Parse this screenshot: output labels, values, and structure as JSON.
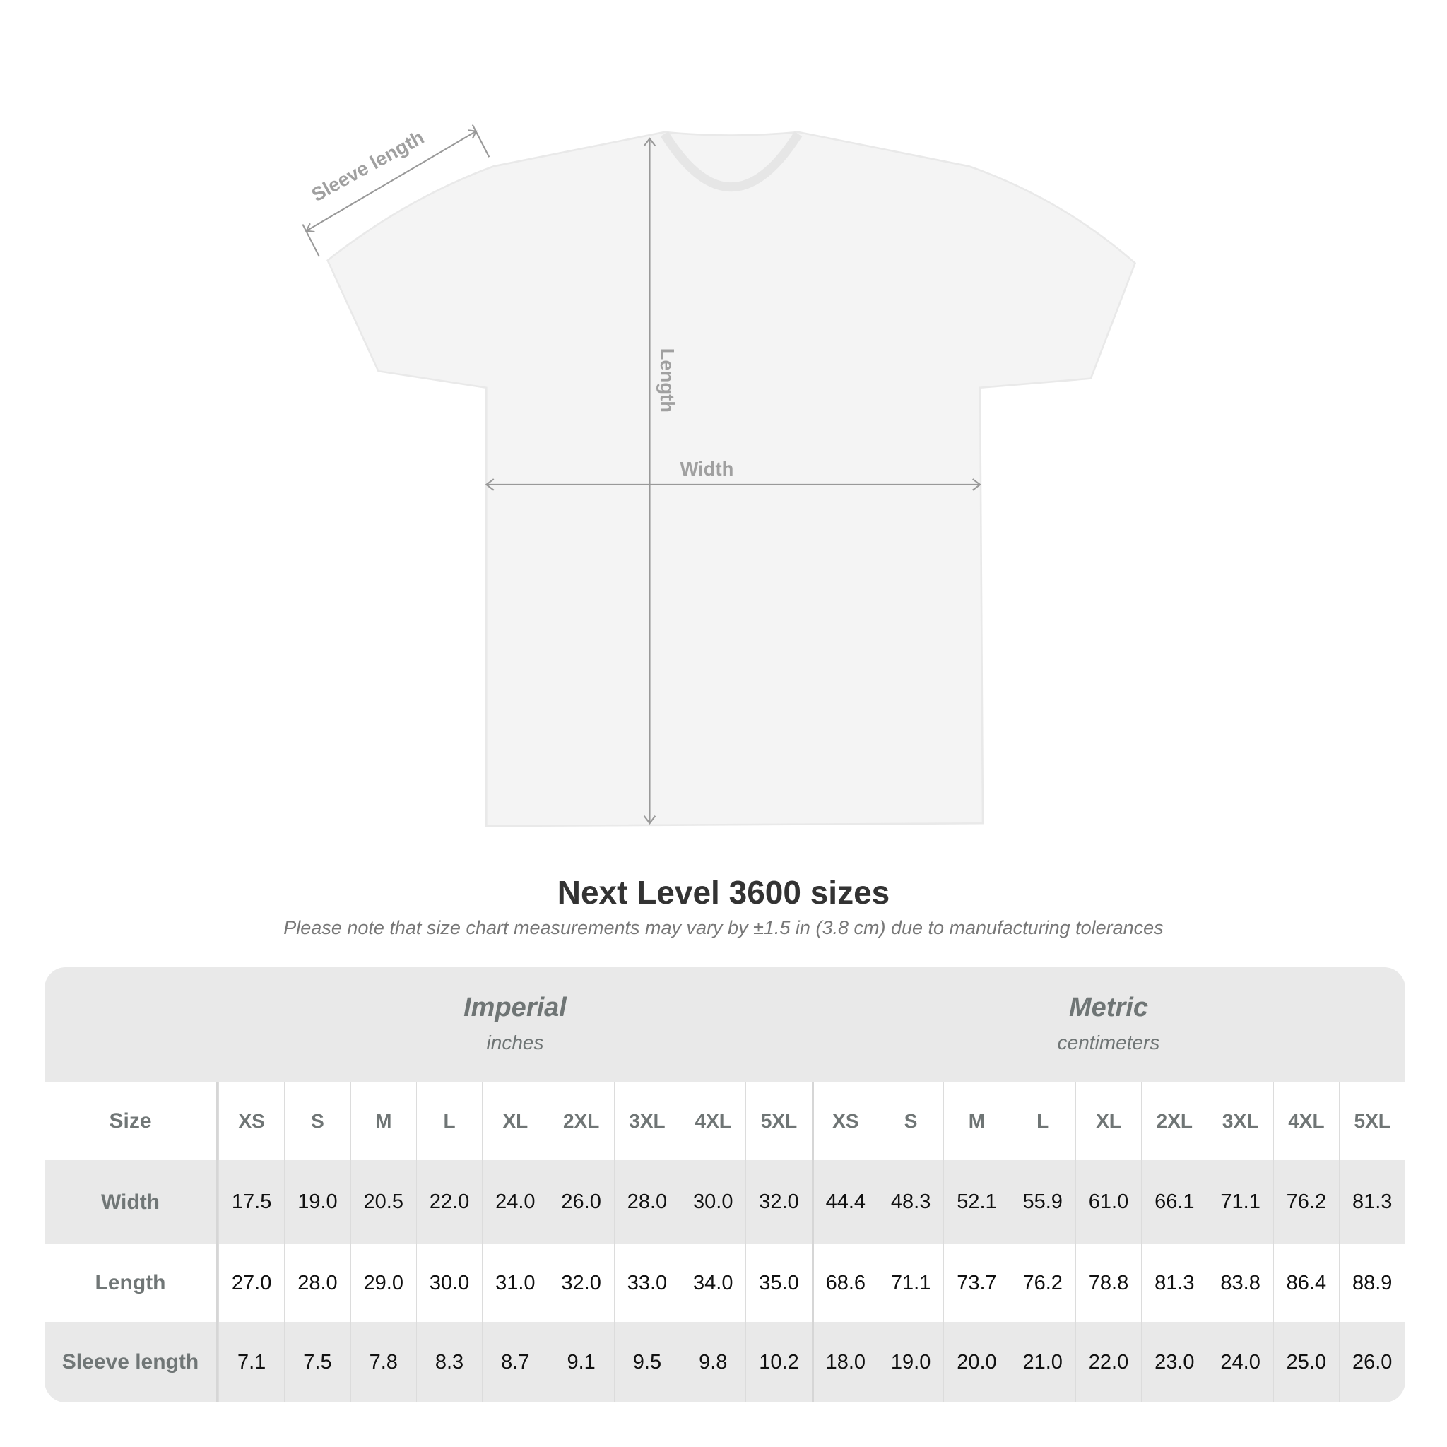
{
  "diagram": {
    "labels": {
      "sleeve": "Sleeve length",
      "length": "Length",
      "width": "Width"
    },
    "colors": {
      "shirt": "#f4f4f4",
      "arrows": "#999999",
      "label_text": "#a0a0a0"
    }
  },
  "title": "Next Level 3600 sizes",
  "subtitle": "Please note that size chart measurements may vary by ±1.5 in (3.8 cm) due to manufacturing tolerances",
  "table": {
    "imperial": {
      "name": "Imperial",
      "unit": "inches"
    },
    "metric": {
      "name": "Metric",
      "unit": "centimeters"
    },
    "size_label": "Size",
    "sizes": [
      "XS",
      "S",
      "M",
      "L",
      "XL",
      "2XL",
      "3XL",
      "4XL",
      "5XL"
    ],
    "rows": [
      {
        "label": "Width",
        "imperial": [
          "17.5",
          "19.0",
          "20.5",
          "22.0",
          "24.0",
          "26.0",
          "28.0",
          "30.0",
          "32.0"
        ],
        "metric": [
          "44.4",
          "48.3",
          "52.1",
          "55.9",
          "61.0",
          "66.1",
          "71.1",
          "76.2",
          "81.3"
        ]
      },
      {
        "label": "Length",
        "imperial": [
          "27.0",
          "28.0",
          "29.0",
          "30.0",
          "31.0",
          "32.0",
          "33.0",
          "34.0",
          "35.0"
        ],
        "metric": [
          "68.6",
          "71.1",
          "73.7",
          "76.2",
          "78.8",
          "81.3",
          "83.8",
          "86.4",
          "88.9"
        ]
      },
      {
        "label": "Sleeve length",
        "imperial": [
          "7.1",
          "7.5",
          "7.8",
          "8.3",
          "8.7",
          "9.1",
          "9.5",
          "9.8",
          "10.2"
        ],
        "metric": [
          "18.0",
          "19.0",
          "20.0",
          "21.0",
          "22.0",
          "23.0",
          "24.0",
          "25.0",
          "26.0"
        ]
      }
    ]
  }
}
